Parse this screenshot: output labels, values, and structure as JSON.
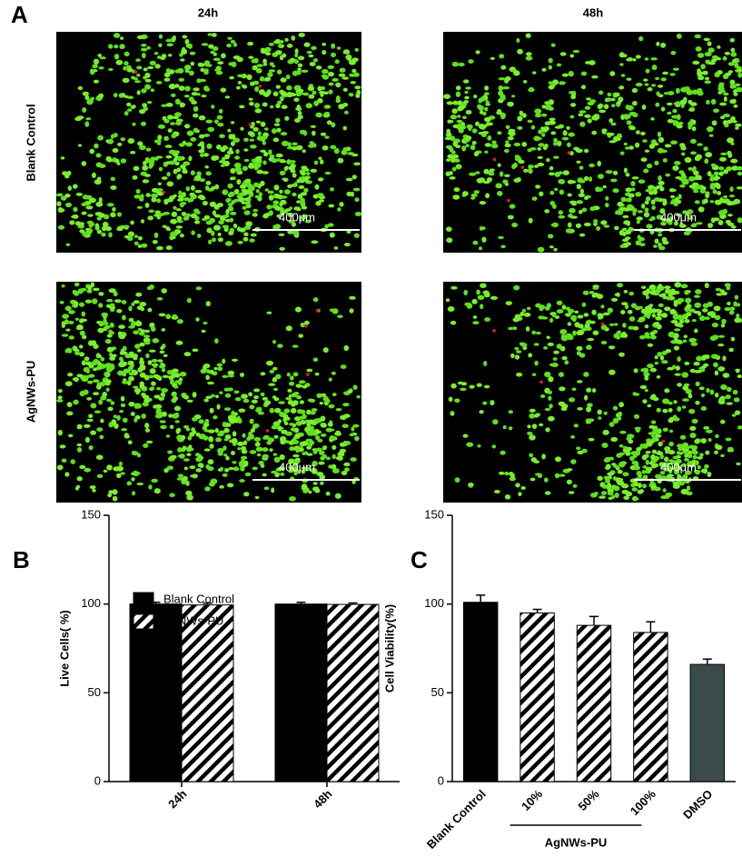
{
  "panels": {
    "a": "A",
    "b": "B",
    "c": "C"
  },
  "microscopy": {
    "columns": [
      "24h",
      "48h"
    ],
    "rows": [
      "Blank Control",
      "AgNWs-PU"
    ],
    "scale_bar": "400μm"
  },
  "chart_data": [
    {
      "type": "bar",
      "y_label": "Live Cells( %)",
      "categories": [
        "24h",
        "48h"
      ],
      "series": [
        {
          "name": "Blank Control",
          "color": "#000000",
          "values": [
            100,
            100
          ],
          "errors": [
            1,
            1
          ]
        },
        {
          "name": "AgNWs-PU",
          "color": "hatch",
          "values": [
            99.5,
            99.8
          ],
          "errors": [
            1,
            0.8
          ]
        }
      ],
      "ylim": [
        0,
        150
      ],
      "yticks": [
        0,
        50,
        100,
        150
      ],
      "legend": "upper left"
    },
    {
      "type": "bar",
      "y_label": "Cell Viability(%)",
      "categories": [
        "Blank Control",
        "10%",
        "50%",
        "100%",
        "DMSO"
      ],
      "values": [
        101,
        95,
        88,
        84,
        66
      ],
      "errors": [
        4,
        2,
        5,
        6,
        3
      ],
      "colors": [
        "#000000",
        "hatch",
        "hatch",
        "hatch",
        "#3b4b4c"
      ],
      "group_label": "AgNWs-PU",
      "ylim": [
        0,
        150
      ],
      "yticks": [
        0,
        50,
        100,
        150
      ]
    }
  ]
}
